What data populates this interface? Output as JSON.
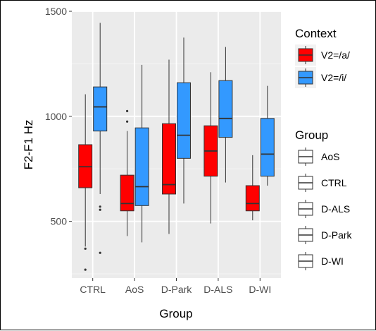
{
  "chart_data": {
    "type": "boxplot",
    "xlabel": "Group",
    "ylabel": "F2-F1 Hz",
    "ylim": [
      230,
      1500
    ],
    "yticks": [
      500,
      1000,
      1500
    ],
    "categories": [
      "CTRL",
      "AoS",
      "D-Park",
      "D-ALS",
      "D-WI"
    ],
    "series": [
      {
        "name": "V2=/a/",
        "color": "#ff0000",
        "boxes": [
          {
            "min": 380,
            "q1": 660,
            "median": 760,
            "q3": 865,
            "max": 1105,
            "outliers": [
              370,
              270
            ]
          },
          {
            "min": 430,
            "q1": 550,
            "median": 585,
            "q3": 720,
            "max": 930,
            "outliers": [
              1025,
              975
            ]
          },
          {
            "min": 440,
            "q1": 630,
            "median": 675,
            "q3": 965,
            "max": 1270,
            "outliers": []
          },
          {
            "min": 490,
            "q1": 715,
            "median": 835,
            "q3": 955,
            "max": 1210,
            "outliers": []
          },
          {
            "min": 505,
            "q1": 550,
            "median": 585,
            "q3": 670,
            "max": 815,
            "outliers": []
          }
        ]
      },
      {
        "name": "V2=/i/",
        "color": "#3399ff",
        "boxes": [
          {
            "min": 630,
            "q1": 930,
            "median": 1045,
            "q3": 1140,
            "max": 1445,
            "outliers": [
              570,
              555,
              350
            ]
          },
          {
            "min": 400,
            "q1": 575,
            "median": 665,
            "q3": 945,
            "max": 1245,
            "outliers": []
          },
          {
            "min": 585,
            "q1": 800,
            "median": 910,
            "q3": 1160,
            "max": 1375,
            "outliers": []
          },
          {
            "min": 685,
            "q1": 900,
            "median": 990,
            "q3": 1170,
            "max": 1330,
            "outliers": []
          },
          {
            "min": 670,
            "q1": 715,
            "median": 820,
            "q3": 990,
            "max": 1145,
            "outliers": []
          }
        ]
      }
    ],
    "legend": {
      "placement": "right",
      "context_title": "Context",
      "context_items": [
        "V2=/a/",
        "V2=/i/"
      ],
      "group_title": "Group",
      "group_items": [
        "AoS",
        "CTRL",
        "D-ALS",
        "D-Park",
        "D-WI"
      ]
    },
    "grid": true
  }
}
